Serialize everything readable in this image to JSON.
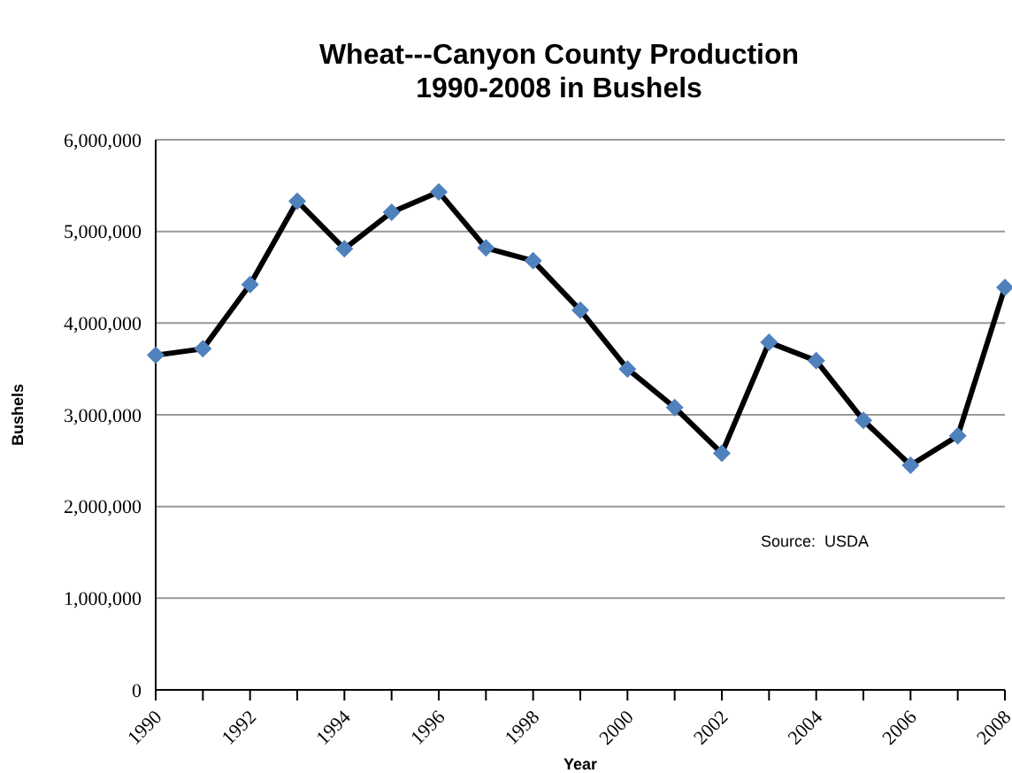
{
  "chart_data": {
    "type": "line",
    "title": "Wheat---Canyon County Production\n1990-2008 in Bushels",
    "xlabel": "Year",
    "ylabel": "Bushels",
    "categories": [
      "1990",
      null,
      "1992",
      null,
      "1994",
      null,
      "1996",
      null,
      "1998",
      null,
      "2000",
      null,
      "2002",
      null,
      "2004",
      null,
      "2006",
      null,
      "2008"
    ],
    "series": [
      {
        "color": "#4f81bd",
        "values": [
          3650000,
          3720000,
          4420000,
          5330000,
          4810000,
          5210000,
          5430000,
          4820000,
          4680000,
          4140000,
          3500000,
          3080000,
          2580000,
          3790000,
          3590000,
          2940000,
          2450000,
          2770000,
          4390000
        ]
      }
    ],
    "ylim": [
      0,
      6000000
    ],
    "yticks": [
      {
        "value": 0,
        "label": "0"
      },
      {
        "value": 1000000,
        "label": "1,000,000"
      },
      {
        "value": 2000000,
        "label": "2,000,000"
      },
      {
        "value": 3000000,
        "label": "3,000,000"
      },
      {
        "value": 4000000,
        "label": "4,000,000"
      },
      {
        "value": 5000000,
        "label": "5,000,000"
      },
      {
        "value": 6000000,
        "label": "6,000,000"
      }
    ],
    "grid": "y",
    "marker": "diamond",
    "line_style": "solid",
    "legend": false,
    "annotations": [
      "Source:  USDA"
    ]
  }
}
